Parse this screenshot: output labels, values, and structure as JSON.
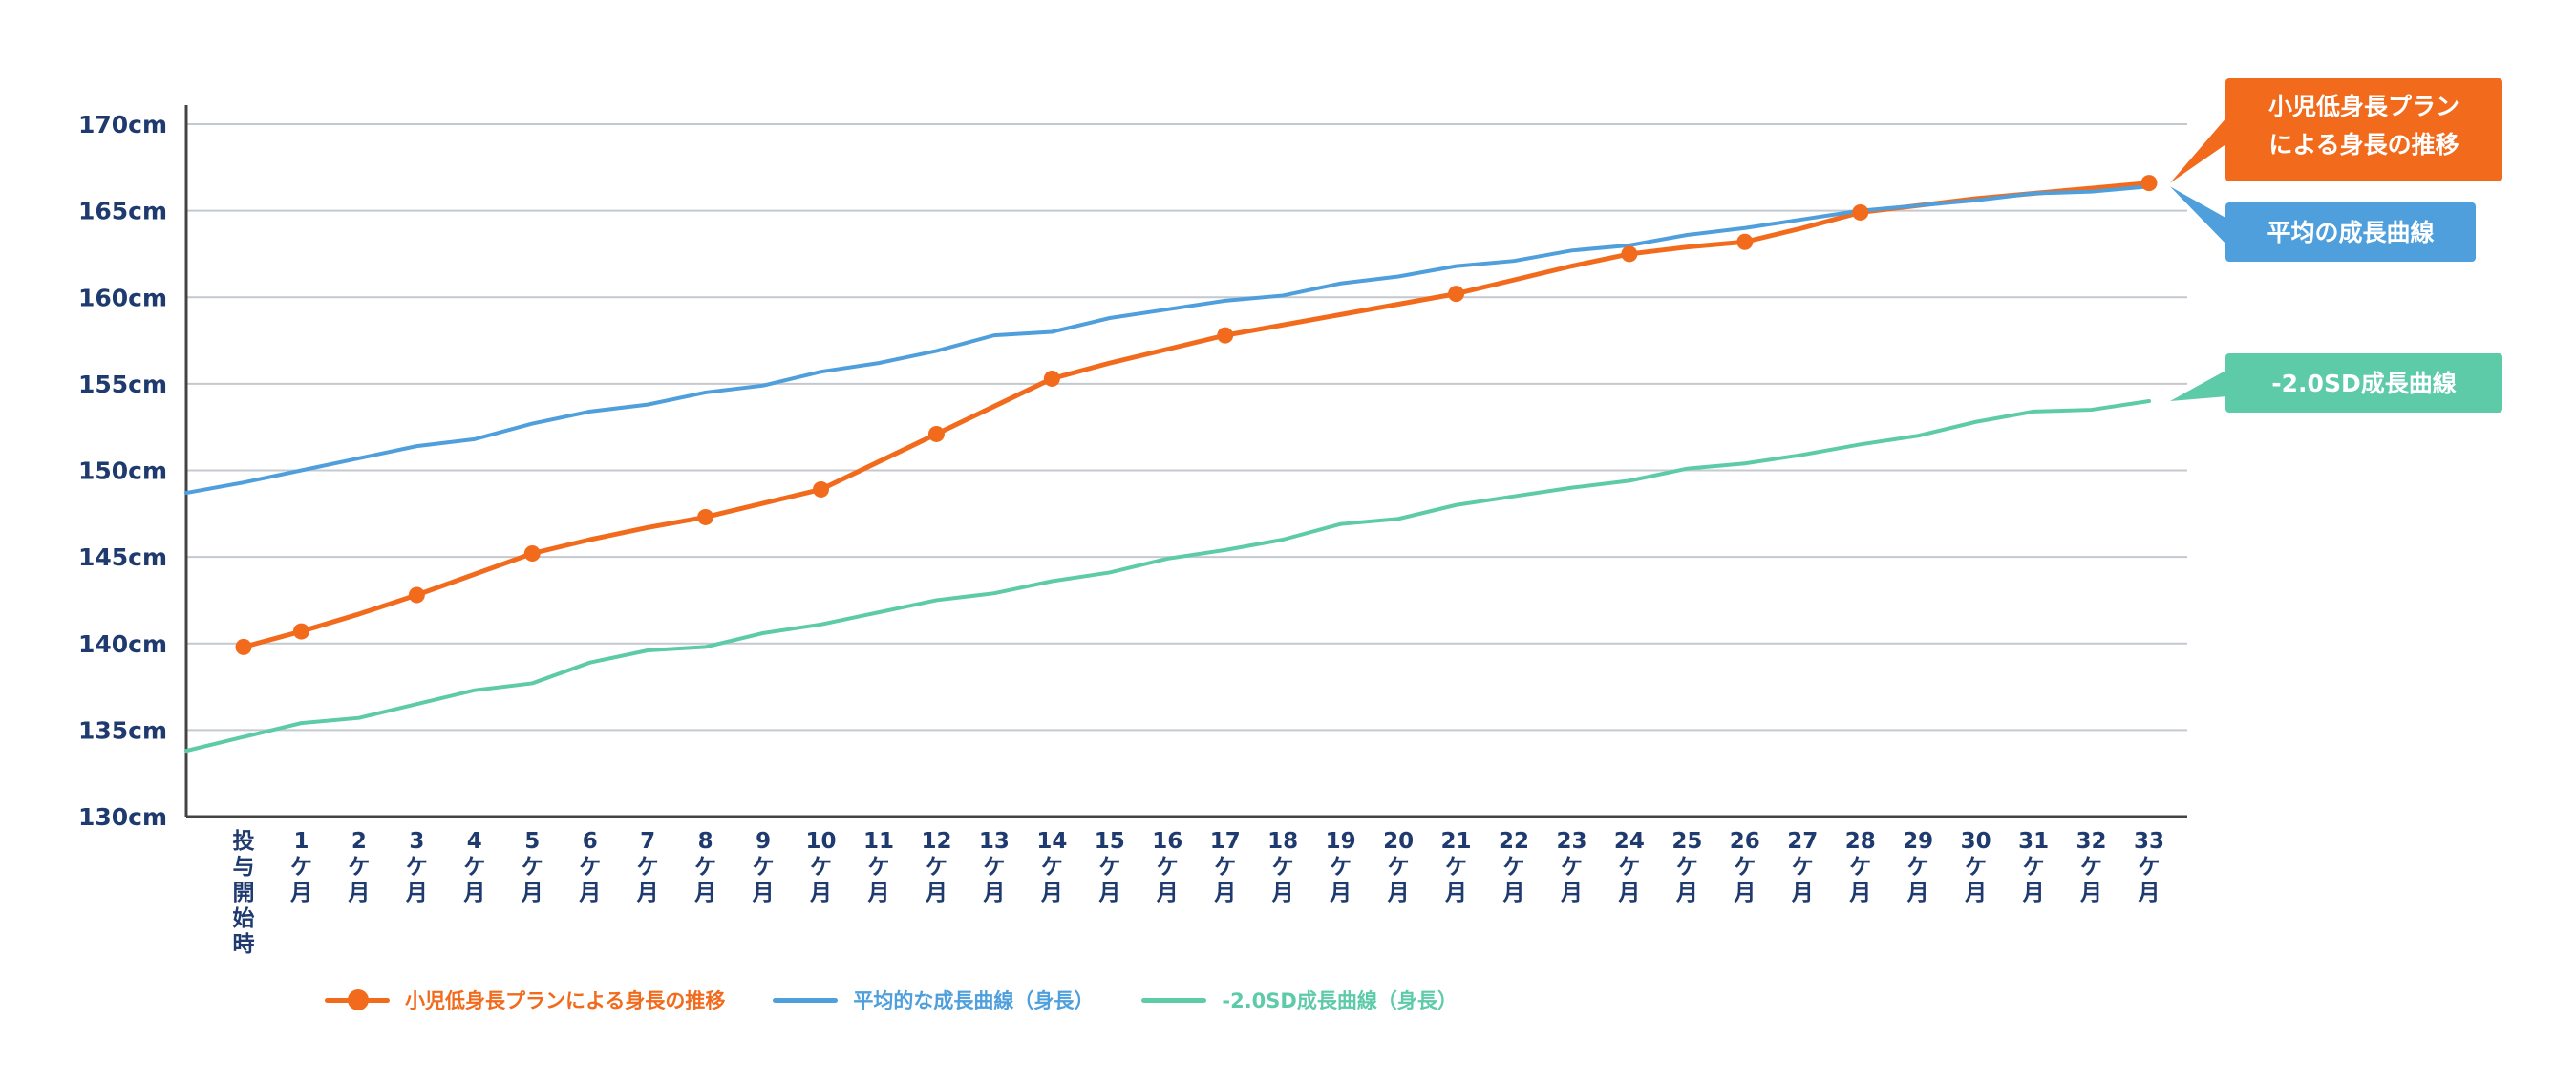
{
  "chart_data": {
    "type": "line",
    "title": "",
    "xlabel": "",
    "ylabel": "",
    "ylim": [
      130,
      170
    ],
    "yticks": [
      "130cm",
      "135cm",
      "140cm",
      "145cm",
      "150cm",
      "155cm",
      "160cm",
      "165cm",
      "170cm"
    ],
    "categories": [
      "投与開始時",
      "1ケ月",
      "2ケ月",
      "3ケ月",
      "4ケ月",
      "5ケ月",
      "6ケ月",
      "7ケ月",
      "8ケ月",
      "9ケ月",
      "10ケ月",
      "11ケ月",
      "12ケ月",
      "13ケ月",
      "14ケ月",
      "15ケ月",
      "16ケ月",
      "17ケ月",
      "18ケ月",
      "19ケ月",
      "20ケ月",
      "21ケ月",
      "22ケ月",
      "23ケ月",
      "24ケ月",
      "25ケ月",
      "26ケ月",
      "27ケ月",
      "28ケ月",
      "29ケ月",
      "30ケ月",
      "31ケ月",
      "32ケ月",
      "33ケ月"
    ],
    "grid": true,
    "legend_position": "bottom-left",
    "series": [
      {
        "name": "小児低身長プランによる身長の推移",
        "color": "#f26b1d",
        "markers": true,
        "marked_indices": [
          0,
          1,
          3,
          5,
          8,
          10,
          12,
          14,
          17,
          21,
          24,
          26,
          28,
          33
        ],
        "values": [
          139.8,
          140.7,
          141.7,
          142.8,
          144.0,
          145.2,
          146.0,
          146.7,
          147.3,
          148.1,
          148.9,
          150.5,
          152.1,
          153.7,
          155.3,
          156.2,
          157.0,
          157.8,
          158.4,
          159.0,
          159.6,
          160.2,
          161.0,
          161.8,
          162.5,
          162.9,
          163.2,
          164.0,
          164.9,
          165.3,
          165.7,
          166.0,
          166.3,
          166.6
        ]
      },
      {
        "name": "平均的な成長曲線（身長）",
        "color": "#4f9fdc",
        "markers": false,
        "values": [
          149.3,
          150.0,
          150.7,
          151.4,
          151.8,
          152.7,
          153.4,
          153.8,
          154.5,
          154.9,
          155.7,
          156.2,
          156.9,
          157.8,
          158.0,
          158.8,
          159.3,
          159.8,
          160.1,
          160.8,
          161.2,
          161.8,
          162.1,
          162.7,
          163.0,
          163.6,
          164.0,
          164.5,
          165.0,
          165.3,
          165.6,
          166.0,
          166.1,
          166.4
        ]
      },
      {
        "name": "-2.0SD成長曲線（身長）",
        "color": "#5ecba8",
        "markers": false,
        "values": [
          134.6,
          135.4,
          135.7,
          136.5,
          137.3,
          137.7,
          138.9,
          139.6,
          139.8,
          140.6,
          141.1,
          141.8,
          142.5,
          142.9,
          143.6,
          144.1,
          144.9,
          145.4,
          146.0,
          146.9,
          147.2,
          148.0,
          148.5,
          149.0,
          149.4,
          150.1,
          150.4,
          150.9,
          151.5,
          152.0,
          152.8,
          153.4,
          153.5,
          154.0
        ]
      }
    ],
    "start_values": {
      "平均": 148.7,
      "-2.0SD": 133.8
    },
    "callouts": [
      {
        "series": 0,
        "lines": [
          "小児低身長プラン",
          "による身長の推移"
        ],
        "color": "#f26b1d"
      },
      {
        "series": 1,
        "lines": [
          "平均の成長曲線"
        ],
        "color": "#4f9fdc"
      },
      {
        "series": 2,
        "lines": [
          "-2.0SD成長曲線"
        ],
        "color": "#5ecba8"
      }
    ]
  }
}
